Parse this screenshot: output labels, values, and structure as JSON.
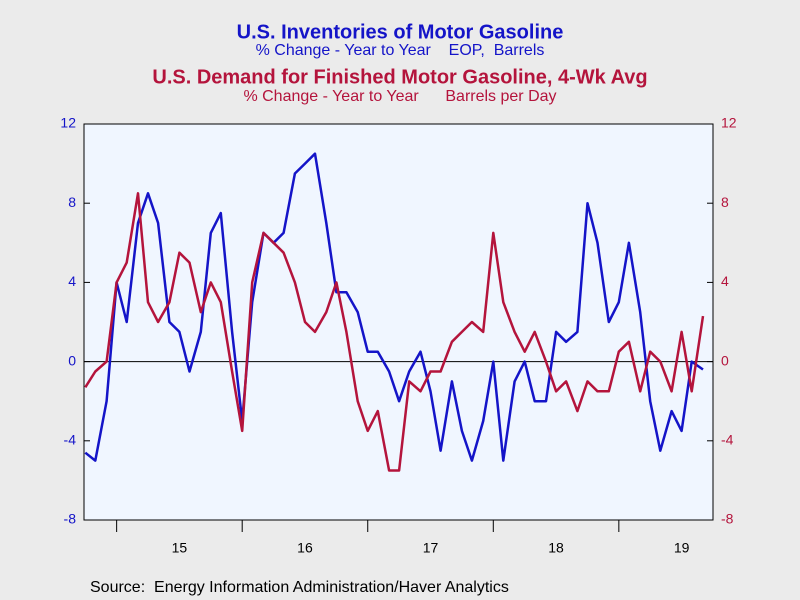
{
  "chart_data": {
    "type": "line",
    "source": "Source:  Energy Information Administration/Haver Analytics",
    "x": [
      2014.75,
      2014.83,
      2014.92,
      2015.0,
      2015.08,
      2015.17,
      2015.25,
      2015.33,
      2015.42,
      2015.5,
      2015.58,
      2015.67,
      2015.75,
      2015.83,
      2015.92,
      2016.0,
      2016.08,
      2016.17,
      2016.25,
      2016.33,
      2016.42,
      2016.5,
      2016.58,
      2016.67,
      2016.75,
      2016.83,
      2016.92,
      2017.0,
      2017.08,
      2017.17,
      2017.25,
      2017.33,
      2017.42,
      2017.5,
      2017.58,
      2017.67,
      2017.75,
      2017.83,
      2017.92,
      2018.0,
      2018.08,
      2018.17,
      2018.25,
      2018.33,
      2018.42,
      2018.5,
      2018.58,
      2018.67,
      2018.75,
      2018.83,
      2018.92,
      2019.0,
      2019.08,
      2019.17,
      2019.25,
      2019.33,
      2019.42,
      2019.5,
      2019.58,
      2019.67
    ],
    "series": [
      {
        "name": "U.S. Inventories of Motor Gasoline",
        "subtitle": "% Change - Year to Year    EOP,  Barrels",
        "color": "#1414c8",
        "axis": "y",
        "values": [
          -4.6,
          -5,
          -2,
          4,
          2,
          7,
          8.5,
          7,
          2,
          1.5,
          -0.5,
          1.5,
          6.5,
          7.5,
          1.5,
          -3,
          3,
          6.5,
          6,
          6.5,
          9.5,
          10,
          10.5,
          7,
          3.5,
          3.5,
          2.5,
          0.5,
          0.5,
          -0.5,
          -2,
          -0.5,
          0.5,
          -1.5,
          -4.5,
          -1,
          -3.5,
          -5,
          -3,
          0,
          -5,
          -1,
          0,
          -2,
          -2,
          1.5,
          1,
          1.5,
          8,
          6,
          2,
          3,
          6,
          2.5,
          -2,
          -4.5,
          -2.5,
          -3.5,
          0,
          -0.4
        ]
      },
      {
        "name": "U.S. Demand for Finished Motor Gasoline, 4-Wk Avg",
        "subtitle": "% Change - Year to Year      Barrels per Day",
        "color": "#b4143c",
        "axis": "y2",
        "values": [
          -1.3,
          -0.5,
          0,
          4,
          5,
          8.5,
          3,
          2,
          3,
          5.5,
          5,
          2.5,
          4,
          3,
          -0.5,
          -3.5,
          4,
          6.5,
          6,
          5.5,
          4,
          2,
          1.5,
          2.5,
          4,
          1.5,
          -2,
          -3.5,
          -2.5,
          -5.5,
          -5.5,
          -1,
          -1.5,
          -0.5,
          -0.5,
          1,
          1.5,
          2,
          1.5,
          6.5,
          3,
          1.5,
          0.5,
          1.5,
          0,
          -1.5,
          -1,
          -2.5,
          -1,
          -1.5,
          -1.5,
          0.5,
          1,
          -1.5,
          0.5,
          0,
          -1.5,
          1.5,
          -1.5,
          2.3
        ]
      }
    ],
    "xlim": [
      2014.74,
      2019.75
    ],
    "xticks": [
      {
        "value": 2015.5,
        "label": "15"
      },
      {
        "value": 2016.5,
        "label": "16"
      },
      {
        "value": 2017.5,
        "label": "17"
      },
      {
        "value": 2018.5,
        "label": "18"
      },
      {
        "value": 2019.5,
        "label": "19"
      }
    ],
    "year_ticks": [
      2015,
      2016,
      2017,
      2018,
      2019
    ],
    "ylim": [
      -8,
      12
    ],
    "yticks": [
      -8,
      -4,
      0,
      4,
      8,
      12
    ],
    "y2lim": [
      -8,
      12
    ],
    "y2ticks": [
      -8,
      -4,
      0,
      4,
      8,
      12
    ]
  }
}
